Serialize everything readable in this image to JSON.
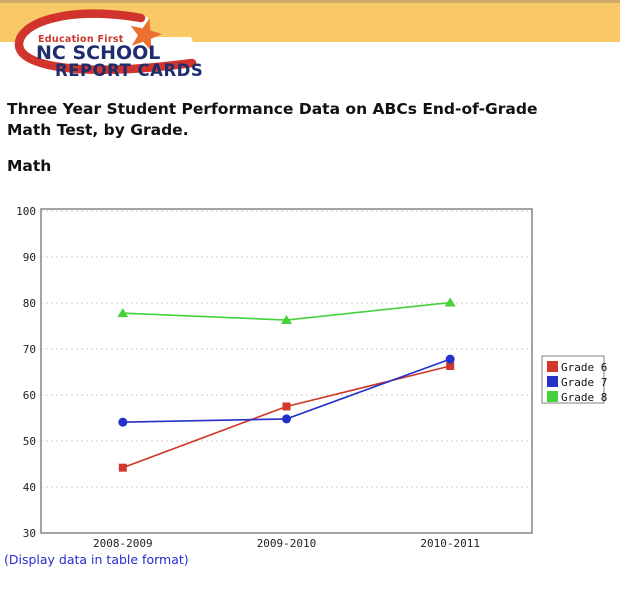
{
  "header": {
    "logo": {
      "tagline": "Education First",
      "line1": "NC SCHOOL",
      "line2": "REPORT CARDS"
    },
    "colors": {
      "band": "#f9c967",
      "band_edge": "#cdab66",
      "swoosh_red": "#d0342c",
      "star_orange": "#ee7031",
      "navy": "#1e2d6e",
      "tagline_red": "#cc3829"
    }
  },
  "page": {
    "title": "Three Year Student Performance Data on ABCs End-of-Grade Math Test, by Grade.",
    "section_heading": "Math",
    "table_link": "(Display data in table format)",
    "link_color": "#2a2ad0"
  },
  "chart_data": {
    "type": "line",
    "title": "Math",
    "categories": [
      "2008-2009",
      "2009-2010",
      "2010-2011"
    ],
    "series": [
      {
        "name": "Grade 6",
        "marker": "square",
        "color": "#cf382b",
        "values": [
          44.2,
          57.5,
          66.3
        ]
      },
      {
        "name": "Grade 7",
        "marker": "circle",
        "color": "#2430c8",
        "values": [
          54.1,
          54.8,
          67.8
        ]
      },
      {
        "name": "Grade 8",
        "marker": "triangle",
        "color": "#45d03c",
        "values": [
          77.8,
          76.3,
          80.1
        ]
      }
    ],
    "ylim": [
      30,
      100
    ],
    "ytick_step": 10,
    "grid": "horizontal-dashed",
    "gridline_color": "#cccccc",
    "axis_border_color": "#858585",
    "label_color": "#222222",
    "legend_position": "right",
    "legend_border_color": "#808080"
  }
}
